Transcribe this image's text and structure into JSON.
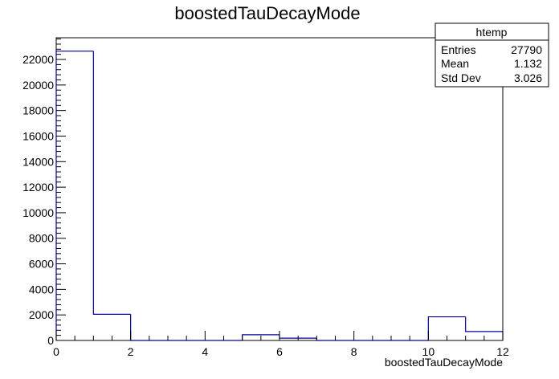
{
  "chart_data": {
    "type": "bar",
    "title": "boostedTauDecayMode",
    "xlabel": "boostedTauDecayMode",
    "ylabel": "",
    "xlim": [
      0,
      12
    ],
    "ylim": [
      0,
      23700
    ],
    "x_ticks": [
      "0",
      "2",
      "4",
      "6",
      "8",
      "10",
      "12"
    ],
    "y_ticks": [
      "0",
      "2000",
      "4000",
      "6000",
      "8000",
      "10000",
      "12000",
      "14000",
      "16000",
      "18000",
      "20000",
      "22000"
    ],
    "bins": [
      {
        "low": 0,
        "high": 1,
        "value": 22650
      },
      {
        "low": 1,
        "high": 2,
        "value": 2050
      },
      {
        "low": 2,
        "high": 3,
        "value": 0
      },
      {
        "low": 3,
        "high": 4,
        "value": 0
      },
      {
        "low": 4,
        "high": 5,
        "value": 0
      },
      {
        "low": 5,
        "high": 6,
        "value": 450
      },
      {
        "low": 6,
        "high": 7,
        "value": 180
      },
      {
        "low": 7,
        "high": 8,
        "value": 0
      },
      {
        "low": 8,
        "high": 9,
        "value": 0
      },
      {
        "low": 9,
        "high": 10,
        "value": 0
      },
      {
        "low": 10,
        "high": 11,
        "value": 1850
      },
      {
        "low": 11,
        "high": 12,
        "value": 700
      }
    ],
    "line_color": "#000099",
    "grid": false
  },
  "stats_box": {
    "name": "htemp",
    "rows": [
      {
        "label": "Entries",
        "value": "27790"
      },
      {
        "label": "Mean",
        "value": "1.132"
      },
      {
        "label": "Std Dev",
        "value": "3.026"
      }
    ]
  }
}
